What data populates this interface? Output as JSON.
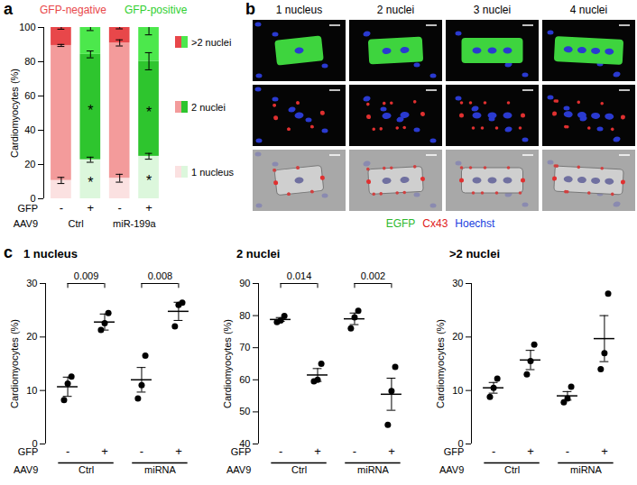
{
  "chart_data": [
    {
      "panel": "a",
      "type": "bar",
      "stacked": true,
      "grid": false,
      "legend": "right",
      "header_labels": [
        {
          "text": "GFP-negative",
          "color": "#e8474a"
        },
        {
          "text": "GFP-positive",
          "color": "#2fcf2f"
        }
      ],
      "y_label": "Cardiomyocytes (%)",
      "ylim": [
        0,
        100
      ],
      "yticks": [
        0,
        20,
        40,
        60,
        80,
        100
      ],
      "row_label": "GFP",
      "categories": [
        "-",
        "+",
        "-",
        "+"
      ],
      "groups": {
        "label": "AAV9",
        "names": [
          "Ctrl",
          "miR-199a"
        ]
      },
      "series": [
        {
          "name": "1 nucleus",
          "colors": [
            "#fbe1e1",
            "#dcf7dc",
            "#fbe1e1",
            "#dcf7dc"
          ],
          "values": [
            10.7,
            22.8,
            12.0,
            24.8
          ],
          "errors": [
            1.8,
            1.5,
            2.3,
            1.7
          ]
        },
        {
          "name": "2 nuclei",
          "colors": [
            "#f39b9b",
            "#2ec52e",
            "#f39b9b",
            "#2ec52e"
          ],
          "values": [
            78.8,
            61.5,
            79.0,
            55.5
          ],
          "errors": [
            0.6,
            2.0,
            1.8,
            5.0
          ]
        },
        {
          "name": ">2 nuclei",
          "colors": [
            "#e8474a",
            "#4ce84c",
            "#e8474a",
            "#4ce84c"
          ],
          "values": [
            10.5,
            15.7,
            9.0,
            19.7
          ],
          "errors": [
            1.0,
            1.8,
            0.8,
            4.3
          ]
        }
      ],
      "annotations": [
        {
          "text": "*",
          "series": "1 nucleus",
          "index": 1
        },
        {
          "text": "*",
          "series": "2 nuclei",
          "index": 1
        },
        {
          "text": "*",
          "series": "1 nucleus",
          "index": 3
        },
        {
          "text": "*",
          "series": "2 nuclei",
          "index": 3
        }
      ]
    },
    {
      "panel": "b",
      "type": "image_grid",
      "columns": [
        "1 nucleus",
        "2 nuclei",
        "3 nuclei",
        "4 nuclei"
      ],
      "channels": [
        {
          "name": "EGFP",
          "color": "#2db82d"
        },
        {
          "name": "Cx43",
          "color": "#e02020"
        },
        {
          "name": "Hoechst",
          "color": "#2040e0"
        }
      ]
    },
    {
      "panel": "c",
      "type": "dot",
      "color": "#000000",
      "y_label": "Cardiomyocytes (%)",
      "row_label": "GFP",
      "categories": [
        "-",
        "+",
        "-",
        "+"
      ],
      "groups": {
        "label": "AAV9",
        "names": [
          "Ctrl",
          "miRNA"
        ]
      },
      "subplots": [
        {
          "title": "1 nucleus",
          "ylim": [
            0,
            30
          ],
          "yticks": [
            0,
            10,
            20,
            30
          ],
          "points": [
            [
              8.2,
              11.3,
              12.6
            ],
            [
              21.3,
              22.6,
              24.5
            ],
            [
              8.5,
              11.0,
              16.5
            ],
            [
              22.0,
              26.0,
              26.4
            ]
          ],
          "means": [
            10.7,
            22.8,
            12.0,
            24.8
          ],
          "errors": [
            1.8,
            1.5,
            2.3,
            1.7
          ],
          "p_values": [
            {
              "value": 0.009,
              "pair": [
                0,
                1
              ]
            },
            {
              "value": 0.008,
              "pair": [
                2,
                3
              ]
            }
          ]
        },
        {
          "title": "2 nuclei",
          "ylim": [
            40,
            90
          ],
          "yticks": [
            40,
            50,
            60,
            70,
            80,
            90
          ],
          "points": [
            [
              78.0,
              78.5,
              79.9
            ],
            [
              59.5,
              60.0,
              65.0
            ],
            [
              76.0,
              79.5,
              81.5
            ],
            [
              46.0,
              56.5,
              64.0
            ]
          ],
          "means": [
            78.8,
            61.5,
            79.0,
            55.5
          ],
          "errors": [
            0.6,
            2.0,
            1.8,
            5.0
          ],
          "p_values": [
            {
              "value": 0.014,
              "pair": [
                0,
                1
              ]
            },
            {
              "value": 0.002,
              "pair": [
                2,
                3
              ]
            }
          ]
        },
        {
          "title": ">2 nuclei",
          "ylim": [
            0,
            30
          ],
          "yticks": [
            0,
            10,
            20,
            30
          ],
          "points": [
            [
              8.8,
              10.5,
              12.2
            ],
            [
              13.0,
              15.5,
              18.6
            ],
            [
              7.8,
              8.5,
              10.7
            ],
            [
              14.0,
              17.0,
              28.1
            ]
          ],
          "means": [
            10.5,
            15.7,
            9.0,
            19.7
          ],
          "errors": [
            1.0,
            1.8,
            0.8,
            4.3
          ]
        }
      ]
    }
  ]
}
